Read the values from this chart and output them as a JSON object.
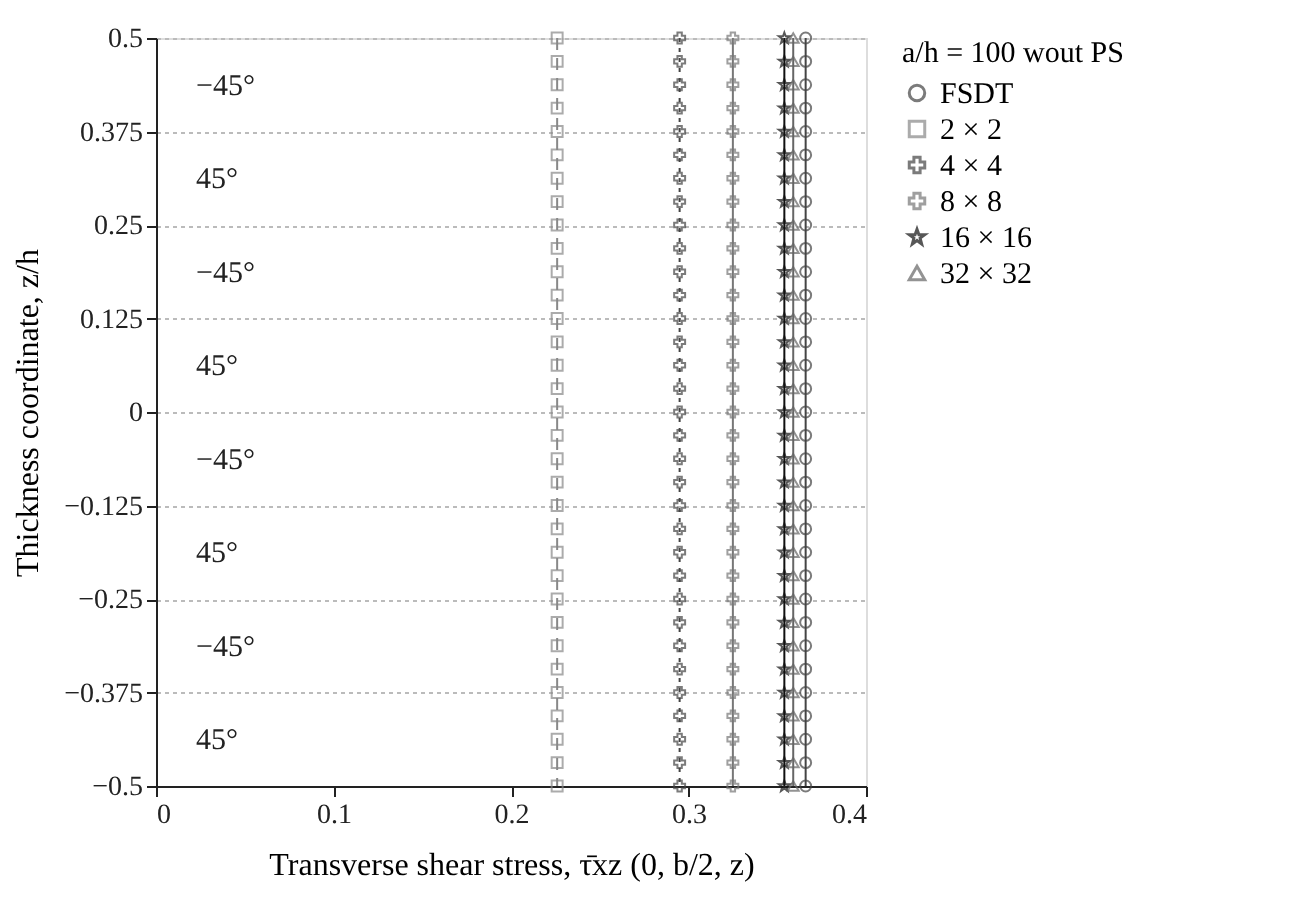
{
  "chart_data": {
    "type": "line",
    "xlabel": "Transverse shear stress, τ̄xz (0, b/2, z)",
    "ylabel": "Thickness coordinate, z/h",
    "legend_title": "a/h = 100 wout PS",
    "legend": "right",
    "grid": "y",
    "xlim": [
      0,
      0.4
    ],
    "xticks": [
      0,
      0.1,
      0.2,
      0.3,
      0.4
    ],
    "ylim": [
      -0.5,
      0.5
    ],
    "yticks": [
      -0.5,
      -0.375,
      -0.25,
      -0.125,
      0,
      0.125,
      0.25,
      0.375,
      0.5
    ],
    "series": [
      {
        "name": "FSDT",
        "color": "#444444",
        "marker": "circle",
        "line_style": "solid",
        "x": [
          0.366,
          0.366,
          0.366,
          0.366,
          0.366,
          0.366,
          0.366,
          0.366,
          0.366,
          0.366,
          0.366,
          0.366,
          0.366,
          0.366,
          0.366,
          0.366,
          0.366,
          0.366,
          0.366,
          0.366,
          0.366,
          0.366,
          0.366,
          0.366,
          0.366,
          0.366,
          0.366,
          0.366,
          0.366,
          0.366,
          0.366,
          0.366,
          0.366
        ],
        "values": [
          0.5,
          0.46875,
          0.4375,
          0.40625,
          0.375,
          0.34375,
          0.3125,
          0.28125,
          0.25,
          0.21875,
          0.1875,
          0.15625,
          0.125,
          0.09375,
          0.0625,
          0.03125,
          0,
          -0.03125,
          -0.0625,
          -0.09375,
          -0.125,
          -0.15625,
          -0.1875,
          -0.21875,
          -0.25,
          -0.28125,
          -0.3125,
          -0.34375,
          -0.375,
          -0.40625,
          -0.4375,
          -0.46875,
          -0.5
        ]
      },
      {
        "name": "2 × 2",
        "color": "#888888",
        "marker": "square",
        "line_style": "dashed",
        "x": [
          0.226,
          0.226,
          0.226,
          0.226,
          0.226,
          0.226,
          0.226,
          0.226,
          0.226,
          0.226,
          0.226,
          0.226,
          0.226,
          0.226,
          0.226,
          0.226,
          0.226,
          0.226,
          0.226,
          0.226,
          0.226,
          0.226,
          0.226,
          0.226,
          0.226,
          0.226,
          0.226,
          0.226,
          0.226,
          0.226,
          0.226,
          0.226,
          0.226
        ],
        "values": [
          0.5,
          0.46875,
          0.4375,
          0.40625,
          0.375,
          0.34375,
          0.3125,
          0.28125,
          0.25,
          0.21875,
          0.1875,
          0.15625,
          0.125,
          0.09375,
          0.0625,
          0.03125,
          0,
          -0.03125,
          -0.0625,
          -0.09375,
          -0.125,
          -0.15625,
          -0.1875,
          -0.21875,
          -0.25,
          -0.28125,
          -0.3125,
          -0.34375,
          -0.375,
          -0.40625,
          -0.4375,
          -0.46875,
          -0.5
        ]
      },
      {
        "name": "4 × 4",
        "color": "#444444",
        "marker": "cross",
        "line_style": "dotted",
        "x": [
          0.295,
          0.295,
          0.295,
          0.295,
          0.295,
          0.295,
          0.295,
          0.295,
          0.295,
          0.295,
          0.295,
          0.295,
          0.295,
          0.295,
          0.295,
          0.295,
          0.295,
          0.295,
          0.295,
          0.295,
          0.295,
          0.295,
          0.295,
          0.295,
          0.295,
          0.295,
          0.295,
          0.295,
          0.295,
          0.295,
          0.295,
          0.295,
          0.295
        ],
        "values": [
          0.5,
          0.46875,
          0.4375,
          0.40625,
          0.375,
          0.34375,
          0.3125,
          0.28125,
          0.25,
          0.21875,
          0.1875,
          0.15625,
          0.125,
          0.09375,
          0.0625,
          0.03125,
          0,
          -0.03125,
          -0.0625,
          -0.09375,
          -0.125,
          -0.15625,
          -0.1875,
          -0.21875,
          -0.25,
          -0.28125,
          -0.3125,
          -0.34375,
          -0.375,
          -0.40625,
          -0.4375,
          -0.46875,
          -0.5
        ]
      },
      {
        "name": "8 × 8",
        "color": "#777777",
        "marker": "cross",
        "line_style": "solid",
        "x": [
          0.325,
          0.325,
          0.325,
          0.325,
          0.325,
          0.325,
          0.325,
          0.325,
          0.325,
          0.325,
          0.325,
          0.325,
          0.325,
          0.325,
          0.325,
          0.325,
          0.325,
          0.325,
          0.325,
          0.325,
          0.325,
          0.325,
          0.325,
          0.325,
          0.325,
          0.325,
          0.325,
          0.325,
          0.325,
          0.325,
          0.325,
          0.325,
          0.325
        ],
        "values": [
          0.5,
          0.46875,
          0.4375,
          0.40625,
          0.375,
          0.34375,
          0.3125,
          0.28125,
          0.25,
          0.21875,
          0.1875,
          0.15625,
          0.125,
          0.09375,
          0.0625,
          0.03125,
          0,
          -0.03125,
          -0.0625,
          -0.09375,
          -0.125,
          -0.15625,
          -0.1875,
          -0.21875,
          -0.25,
          -0.28125,
          -0.3125,
          -0.34375,
          -0.375,
          -0.40625,
          -0.4375,
          -0.46875,
          -0.5
        ]
      },
      {
        "name": "16 × 16",
        "color": "#111111",
        "marker": "star",
        "line_style": "solid",
        "x": [
          0.354,
          0.354,
          0.354,
          0.354,
          0.354,
          0.354,
          0.354,
          0.354,
          0.354,
          0.354,
          0.354,
          0.354,
          0.354,
          0.354,
          0.354,
          0.354,
          0.354,
          0.354,
          0.354,
          0.354,
          0.354,
          0.354,
          0.354,
          0.354,
          0.354,
          0.354,
          0.354,
          0.354,
          0.354,
          0.354,
          0.354,
          0.354,
          0.354
        ],
        "values": [
          0.5,
          0.46875,
          0.4375,
          0.40625,
          0.375,
          0.34375,
          0.3125,
          0.28125,
          0.25,
          0.21875,
          0.1875,
          0.15625,
          0.125,
          0.09375,
          0.0625,
          0.03125,
          0,
          -0.03125,
          -0.0625,
          -0.09375,
          -0.125,
          -0.15625,
          -0.1875,
          -0.21875,
          -0.25,
          -0.28125,
          -0.3125,
          -0.34375,
          -0.375,
          -0.40625,
          -0.4375,
          -0.46875,
          -0.5
        ]
      },
      {
        "name": "32 × 32",
        "color": "#666666",
        "marker": "triangle",
        "line_style": "solid",
        "x": [
          0.359,
          0.359,
          0.359,
          0.359,
          0.359,
          0.359,
          0.359,
          0.359,
          0.359,
          0.359,
          0.359,
          0.359,
          0.359,
          0.359,
          0.359,
          0.359,
          0.359,
          0.359,
          0.359,
          0.359,
          0.359,
          0.359,
          0.359,
          0.359,
          0.359,
          0.359,
          0.359,
          0.359,
          0.359,
          0.359,
          0.359,
          0.359,
          0.359
        ],
        "values": [
          0.5,
          0.46875,
          0.4375,
          0.40625,
          0.375,
          0.34375,
          0.3125,
          0.28125,
          0.25,
          0.21875,
          0.1875,
          0.15625,
          0.125,
          0.09375,
          0.0625,
          0.03125,
          0,
          -0.03125,
          -0.0625,
          -0.09375,
          -0.125,
          -0.15625,
          -0.1875,
          -0.21875,
          -0.25,
          -0.28125,
          -0.3125,
          -0.34375,
          -0.375,
          -0.40625,
          -0.4375,
          -0.46875,
          -0.5
        ]
      }
    ],
    "annotations": [
      "−45°",
      "45°",
      "−45°",
      "45°",
      "−45°",
      "45°",
      "−45°",
      "45°"
    ]
  }
}
